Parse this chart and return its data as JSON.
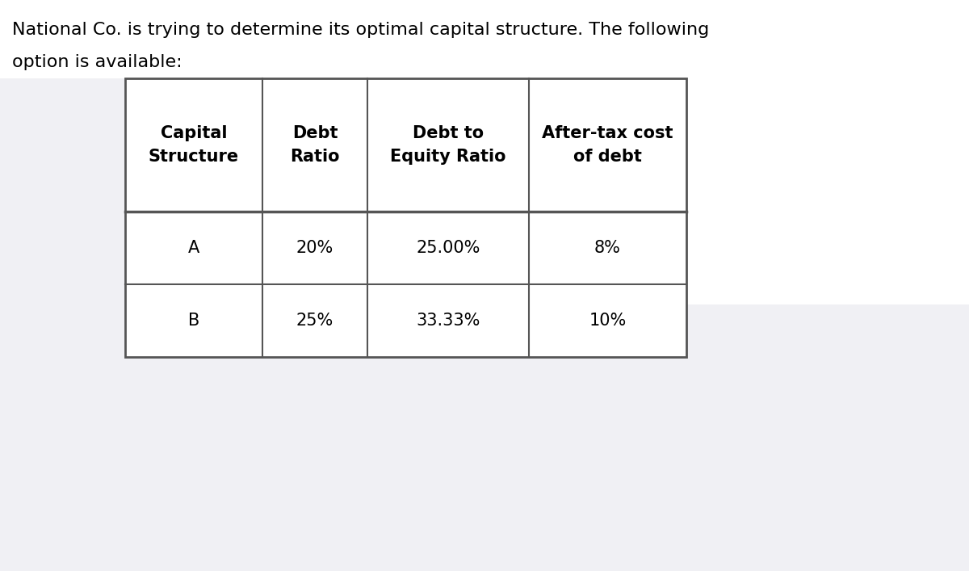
{
  "title_line1": "National Co. is trying to determine its optimal capital structure. The following",
  "title_line2": "option is available:",
  "title_fontsize": 16,
  "title_color": "#000000",
  "background_color": "#ffffff",
  "lower_bg_color": "#f0f0f4",
  "table_bg": "#ffffff",
  "col_headers": [
    "Capital\nStructure",
    "Debt\nRatio",
    "Debt to\nEquity Ratio",
    "After-tax cost\nof debt"
  ],
  "rows": [
    [
      "A",
      "20%",
      "25.00%",
      "8%"
    ],
    [
      "B",
      "25%",
      "33.33%",
      "10%"
    ]
  ],
  "header_fontsize": 15,
  "cell_fontsize": 15,
  "border_color": "#555555",
  "border_lw": 1.5,
  "header_border_lw": 2.0
}
